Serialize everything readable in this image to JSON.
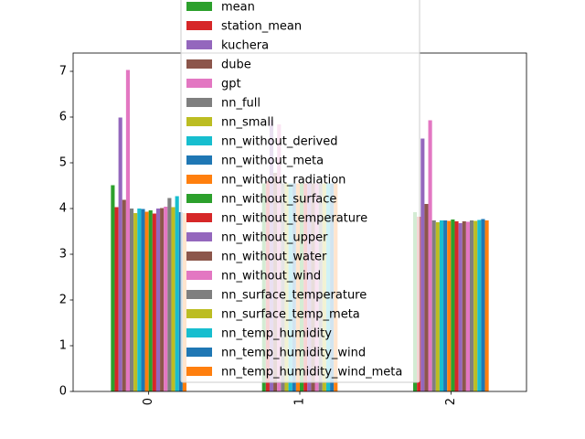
{
  "chart_data": {
    "type": "bar",
    "categories": [
      "0",
      "1",
      "2"
    ],
    "ylim": [
      0,
      7.4
    ],
    "yticks": [
      0,
      1,
      2,
      3,
      4,
      5,
      6,
      7
    ],
    "legend_position": "top-center",
    "grid": false,
    "series": [
      {
        "name": "mean",
        "color": "#2ca02c",
        "values": [
          4.51,
          4.55,
          3.92
        ]
      },
      {
        "name": "station_mean",
        "color": "#d62728",
        "values": [
          4.03,
          4.6,
          3.82
        ]
      },
      {
        "name": "kuchera",
        "color": "#9467bd",
        "values": [
          5.99,
          5.94,
          5.53
        ]
      },
      {
        "name": "dube",
        "color": "#8c564b",
        "values": [
          4.19,
          4.78,
          4.1
        ]
      },
      {
        "name": "gpt",
        "color": "#e377c2",
        "values": [
          7.03,
          5.84,
          5.93
        ]
      },
      {
        "name": "nn_full",
        "color": "#7f7f7f",
        "values": [
          4.0,
          4.55,
          3.74
        ]
      },
      {
        "name": "nn_small",
        "color": "#bcbd22",
        "values": [
          3.9,
          4.55,
          3.7
        ]
      },
      {
        "name": "nn_without_derived",
        "color": "#17becf",
        "values": [
          4.0,
          4.55,
          3.74
        ]
      },
      {
        "name": "nn_without_meta",
        "color": "#1f77b4",
        "values": [
          3.99,
          4.55,
          3.74
        ]
      },
      {
        "name": "nn_without_radiation",
        "color": "#ff7f0e",
        "values": [
          3.93,
          4.55,
          3.73
        ]
      },
      {
        "name": "nn_without_surface",
        "color": "#2ca02c",
        "values": [
          3.96,
          4.55,
          3.76
        ]
      },
      {
        "name": "nn_without_temperature",
        "color": "#d62728",
        "values": [
          3.89,
          4.55,
          3.72
        ]
      },
      {
        "name": "nn_without_upper",
        "color": "#9467bd",
        "values": [
          4.0,
          4.55,
          3.68
        ]
      },
      {
        "name": "nn_without_water",
        "color": "#8c564b",
        "values": [
          4.01,
          4.55,
          3.72
        ]
      },
      {
        "name": "nn_without_wind",
        "color": "#e377c2",
        "values": [
          4.04,
          4.55,
          3.71
        ]
      },
      {
        "name": "nn_surface_temperature",
        "color": "#7f7f7f",
        "values": [
          4.23,
          4.55,
          3.74
        ]
      },
      {
        "name": "nn_surface_temp_meta",
        "color": "#bcbd22",
        "values": [
          4.03,
          4.55,
          3.73
        ]
      },
      {
        "name": "nn_temp_humidity",
        "color": "#17becf",
        "values": [
          4.27,
          4.55,
          3.75
        ]
      },
      {
        "name": "nn_temp_humidity_wind",
        "color": "#1f77b4",
        "values": [
          3.92,
          4.55,
          3.77
        ]
      },
      {
        "name": "nn_temp_humidity_wind_meta",
        "color": "#ff7f0e",
        "values": [
          3.9,
          4.55,
          3.74
        ]
      }
    ]
  }
}
